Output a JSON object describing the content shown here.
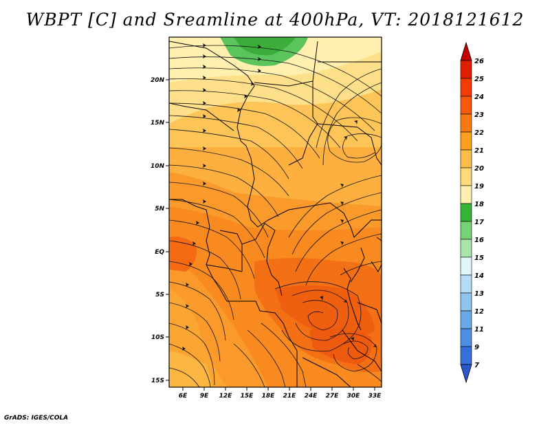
{
  "title": "WBPT [C] and Sreamline at 400hPa, VT: 2018121612",
  "credit": "GrADS: IGES/COLA",
  "map": {
    "lon_ticks": [
      "6E",
      "9E",
      "12E",
      "15E",
      "18E",
      "21E",
      "24E",
      "27E",
      "30E",
      "33E"
    ],
    "lat_ticks": [
      "20N",
      "15N",
      "10N",
      "5N",
      "EQ",
      "5S",
      "10S",
      "15S"
    ]
  },
  "colorbar": {
    "labels": [
      "26",
      "25",
      "24",
      "23",
      "22",
      "21",
      "20",
      "19",
      "18",
      "17",
      "16",
      "15",
      "14",
      "13",
      "12",
      "11",
      "9",
      "7"
    ],
    "colors": [
      "#c40000",
      "#e01e00",
      "#f23c00",
      "#f65a08",
      "#fa7a10",
      "#fc9e1e",
      "#fdbd48",
      "#feda78",
      "#fff0b0",
      "#35b535",
      "#75d275",
      "#a9e5a9",
      "#e0f6fa",
      "#b4dcf6",
      "#8ec4ee",
      "#6aa8e8",
      "#4c8ee2",
      "#3470d8",
      "#2858cc"
    ]
  }
}
